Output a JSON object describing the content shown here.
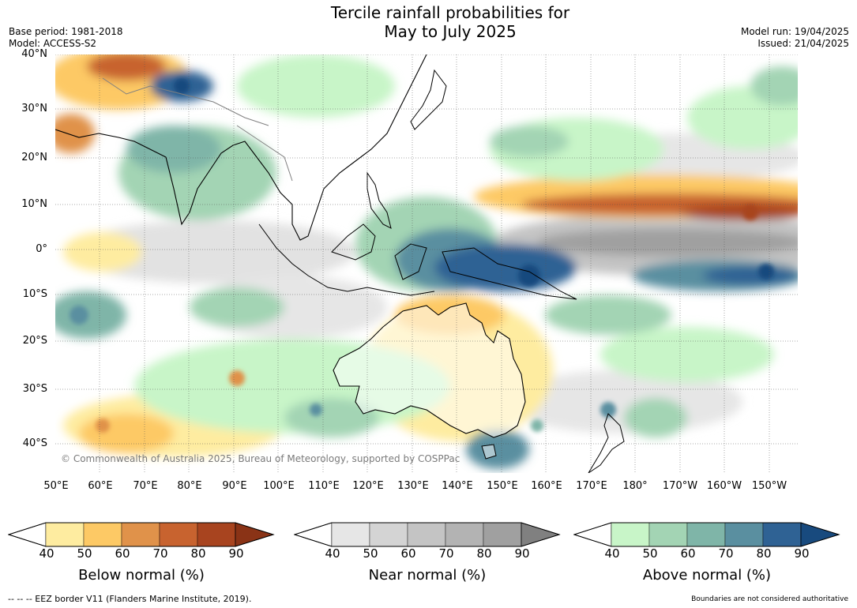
{
  "title_line1": "Tercile rainfall probabilities for",
  "title_line2": "May to July 2025",
  "base_period": "Base period: 1981-2018",
  "model": "Model: ACCESS-S2",
  "model_run": "Model run: 19/04/2025",
  "issued": "Issued: 21/04/2025",
  "credit": "© Commonwealth of Australia 2025, Bureau of Meteorology, supported by COSPPac",
  "lat_labels": [
    "40°N",
    "30°N",
    "20°N",
    "10°N",
    "0°",
    "10°S",
    "20°S",
    "30°S",
    "40°S"
  ],
  "lon_labels": [
    "50°E",
    "60°E",
    "70°E",
    "80°E",
    "90°E",
    "100°E",
    "110°E",
    "120°E",
    "130°E",
    "140°E",
    "150°E",
    "160°E",
    "170°E",
    "180°",
    "170°W",
    "160°W",
    "150°W"
  ],
  "colorbars": [
    {
      "label": "Below normal (%)",
      "ticks": [
        "40",
        "50",
        "60",
        "70",
        "80",
        "90"
      ],
      "colors": [
        "#ffffff",
        "#feeca0",
        "#fdc965",
        "#e0924a",
        "#c8632f",
        "#a8441f",
        "#8a3316"
      ]
    },
    {
      "label": "Near normal (%)",
      "ticks": [
        "40",
        "50",
        "60",
        "70",
        "80",
        "90"
      ],
      "colors": [
        "#ffffff",
        "#e6e6e6",
        "#d4d4d4",
        "#c4c4c4",
        "#b3b3b3",
        "#a0a0a0",
        "#808080"
      ]
    },
    {
      "label": "Above normal (%)",
      "ticks": [
        "40",
        "50",
        "60",
        "70",
        "80",
        "90"
      ],
      "colors": [
        "#ffffff",
        "#c8f5c8",
        "#a3d4b4",
        "#7fb5a8",
        "#5a8fa0",
        "#2f6294",
        "#184a7e"
      ]
    }
  ],
  "footer_left": "--  --  -- EEZ border V11 (Flanders Marine Institute, 2019).",
  "footer_right": "Boundaries are not considered authoritative"
}
